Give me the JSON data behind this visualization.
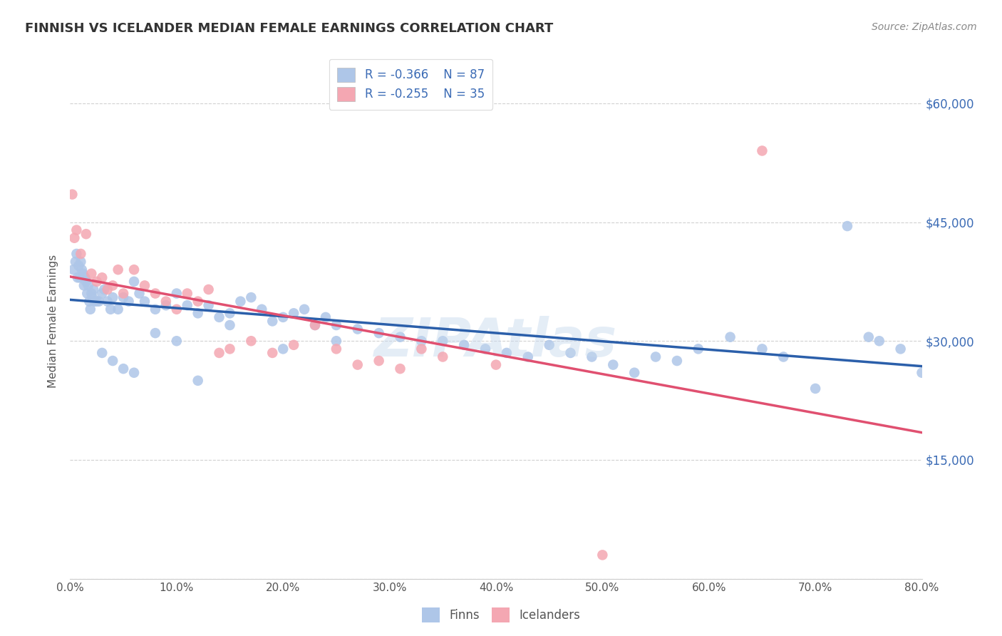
{
  "title": "FINNISH VS ICELANDER MEDIAN FEMALE EARNINGS CORRELATION CHART",
  "source": "Source: ZipAtlas.com",
  "ylabel": "Median Female Earnings",
  "yticks": [
    0,
    15000,
    30000,
    45000,
    60000
  ],
  "ytick_labels": [
    "",
    "$15,000",
    "$30,000",
    "$45,000",
    "$60,000"
  ],
  "xmin": 0.0,
  "xmax": 80.0,
  "ymin": 0,
  "ymax": 65000,
  "finn_r": -0.366,
  "finn_n": 87,
  "ice_r": -0.255,
  "ice_n": 35,
  "finn_color": "#aec6e8",
  "ice_color": "#f4a7b2",
  "finn_line_color": "#2b5faa",
  "ice_line_color": "#e05070",
  "watermark": "ZIPAtlas",
  "background_color": "#ffffff",
  "title_color": "#333333",
  "yaxis_label_color": "#3b6bb5",
  "grid_color": "#cccccc",
  "text_color": "#555555",
  "finn_x": [
    0.3,
    0.5,
    0.6,
    0.7,
    0.8,
    0.9,
    1.0,
    1.1,
    1.2,
    1.3,
    1.4,
    1.5,
    1.6,
    1.7,
    1.8,
    1.9,
    2.0,
    2.1,
    2.2,
    2.3,
    2.5,
    2.7,
    3.0,
    3.2,
    3.5,
    3.8,
    4.0,
    4.5,
    5.0,
    5.5,
    6.0,
    6.5,
    7.0,
    8.0,
    9.0,
    10.0,
    11.0,
    12.0,
    13.0,
    14.0,
    15.0,
    16.0,
    17.0,
    18.0,
    19.0,
    20.0,
    21.0,
    22.0,
    23.0,
    24.0,
    25.0,
    27.0,
    29.0,
    31.0,
    33.0,
    35.0,
    37.0,
    39.0,
    41.0,
    43.0,
    45.0,
    47.0,
    49.0,
    51.0,
    53.0,
    55.0,
    57.0,
    59.0,
    62.0,
    65.0,
    67.0,
    70.0,
    73.0,
    75.0,
    76.0,
    78.0,
    80.0,
    3.0,
    4.0,
    5.0,
    6.0,
    8.0,
    10.0,
    12.0,
    15.0,
    20.0,
    25.0
  ],
  "finn_y": [
    39000,
    40000,
    41000,
    38000,
    39500,
    38000,
    40000,
    39000,
    38500,
    37000,
    38000,
    37500,
    36000,
    37000,
    35000,
    34000,
    36000,
    35500,
    36500,
    35000,
    35000,
    35000,
    36000,
    36500,
    35000,
    34000,
    35500,
    34000,
    35500,
    35000,
    37500,
    36000,
    35000,
    34000,
    34500,
    36000,
    34500,
    33500,
    34500,
    33000,
    33500,
    35000,
    35500,
    34000,
    32500,
    33000,
    33500,
    34000,
    32000,
    33000,
    32000,
    31500,
    31000,
    30500,
    30000,
    30000,
    29500,
    29000,
    28500,
    28000,
    29500,
    28500,
    28000,
    27000,
    26000,
    28000,
    27500,
    29000,
    30500,
    29000,
    28000,
    24000,
    44500,
    30500,
    30000,
    29000,
    26000,
    28500,
    27500,
    26500,
    26000,
    31000,
    30000,
    25000,
    32000,
    29000,
    30000
  ],
  "ice_x": [
    0.2,
    0.4,
    0.6,
    1.0,
    1.5,
    2.0,
    2.5,
    3.0,
    3.5,
    4.0,
    4.5,
    5.0,
    6.0,
    7.0,
    8.0,
    9.0,
    10.0,
    11.0,
    12.0,
    13.0,
    14.0,
    15.0,
    17.0,
    19.0,
    21.0,
    23.0,
    25.0,
    27.0,
    29.0,
    31.0,
    33.0,
    35.0,
    40.0,
    50.0,
    65.0
  ],
  "ice_y": [
    48500,
    43000,
    44000,
    41000,
    43500,
    38500,
    37500,
    38000,
    36500,
    37000,
    39000,
    36000,
    39000,
    37000,
    36000,
    35000,
    34000,
    36000,
    35000,
    36500,
    28500,
    29000,
    30000,
    28500,
    29500,
    32000,
    29000,
    27000,
    27500,
    26500,
    29000,
    28000,
    27000,
    3000,
    54000
  ]
}
